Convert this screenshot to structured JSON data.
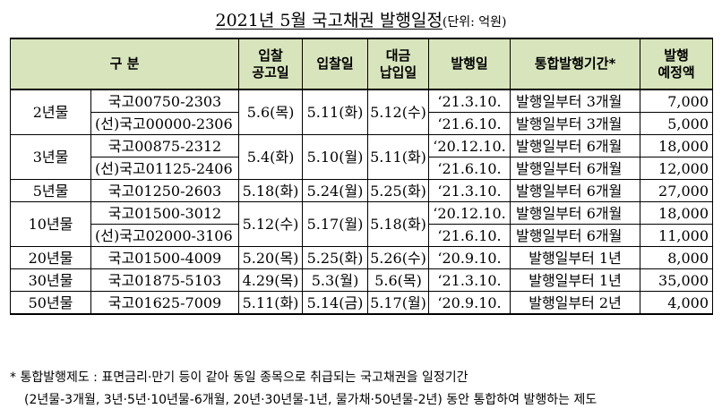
{
  "title": {
    "main": "2021년 5월 국고채권 발행일정",
    "unit": "(단위: 억원)"
  },
  "headers": {
    "category": "구 분",
    "notice_1": "입찰",
    "notice_2": "공고일",
    "bid": "입찰일",
    "pay_1": "대금",
    "pay_2": "납입일",
    "issue": "발행일",
    "merge": "통합발행기간*",
    "amount_1": "발행",
    "amount_2": "예정액"
  },
  "rows": [
    {
      "type": "2년물",
      "code": "국고00750-2303",
      "notice": "5.6(목)",
      "bid": "5.11(화)",
      "pay": "5.12(수)",
      "issue": "‘21.3.10.",
      "merge": "발행일부터 3개월",
      "amount": "7,000"
    },
    {
      "code": "(선)국고00000-2306",
      "issue": "‘21.6.10.",
      "merge": "발행일부터 3개월",
      "amount": "5,000"
    },
    {
      "type": "3년물",
      "code": "국고00875-2312",
      "notice": "5.4(화)",
      "bid": "5.10(월)",
      "pay": "5.11(화)",
      "issue": "‘20.12.10.",
      "merge": "발행일부터 6개월",
      "amount": "18,000"
    },
    {
      "code": "(선)국고01125-2406",
      "issue": "‘21.6.10.",
      "merge": "발행일부터 6개월",
      "amount": "12,000"
    },
    {
      "type": "5년물",
      "code": "국고01250-2603",
      "notice": "5.18(화)",
      "bid": "5.24(월)",
      "pay": "5.25(화)",
      "issue": "‘21.3.10.",
      "merge": "발행일부터 6개월",
      "amount": "27,000"
    },
    {
      "type": "10년물",
      "code": "국고01500-3012",
      "notice": "5.12(수)",
      "bid": "5.17(월)",
      "pay": "5.18(화)",
      "issue": "‘20.12.10.",
      "merge": "발행일부터 6개월",
      "amount": "18,000"
    },
    {
      "code": "(선)국고02000-3106",
      "issue": "‘21.6.10.",
      "merge": "발행일부터 6개월",
      "amount": "11,000"
    },
    {
      "type": "20년물",
      "code": "국고01500-4009",
      "notice": "5.20(목)",
      "bid": "5.25(화)",
      "pay": "5.26(수)",
      "issue": "‘20.9.10.",
      "merge": "발행일부터 1년",
      "amount": "8,000"
    },
    {
      "type": "30년물",
      "code": "국고01875-5103",
      "notice": "4.29(목)",
      "bid": "5.3(월)",
      "pay": "5.6(목)",
      "issue": "‘21.3.10.",
      "merge": "발행일부터 1년",
      "amount": "35,000"
    },
    {
      "type": "50년물",
      "code": "국고01625-7009",
      "notice": "5.11(화)",
      "bid": "5.14(금)",
      "pay": "5.17(월)",
      "issue": "‘20.9.10.",
      "merge": "발행일부터 2년",
      "amount": "4,000"
    }
  ],
  "notes": {
    "line1": "* 통합발행제도 : 표면금리·만기 등이 같아 동일 종목으로 취급되는 국고채권을 일정기간",
    "line2": "(2년물-3개월, 3년·5년·10년물-6개월, 20년·30년물-1년, 물가채·50년물-2년) 동안 통합하여 발행하는 제도"
  }
}
